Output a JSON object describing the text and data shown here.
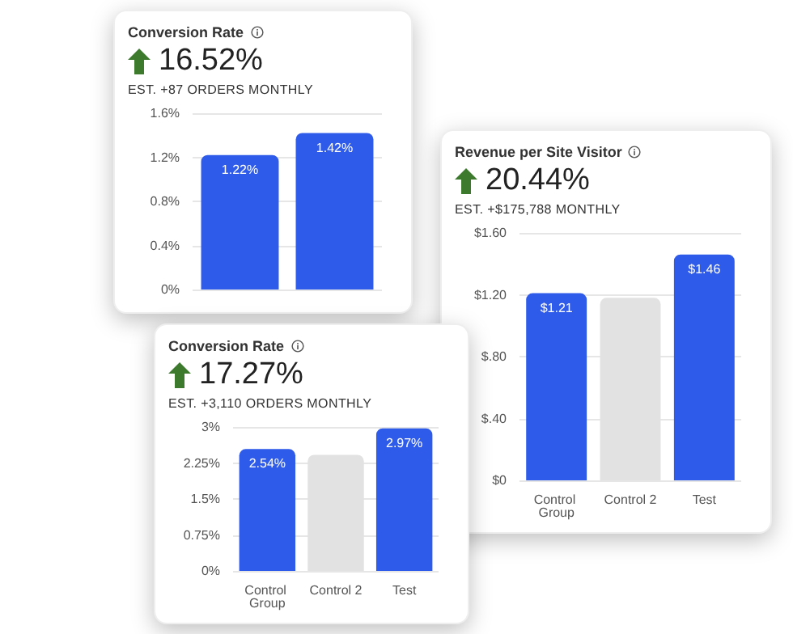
{
  "chart_data": [
    {
      "type": "bar",
      "title": "Conversion Rate",
      "subtitle": "16.52%",
      "annotations": [
        "EST. +87 ORDERS MONTHLY"
      ],
      "categories": [
        null,
        null
      ],
      "values": [
        1.22,
        1.42
      ],
      "colors": [
        "#2f5bea",
        "#2f5bea"
      ],
      "value_labels": [
        "1.22%",
        "1.42%"
      ],
      "ylim": [
        0,
        1.6
      ],
      "yticks": [
        {
          "value": 0,
          "label": "0%"
        },
        {
          "value": 0.4,
          "label": "0.4%"
        },
        {
          "value": 0.8,
          "label": "0.8%"
        },
        {
          "value": 1.2,
          "label": "1.2%"
        },
        {
          "value": 1.6,
          "label": "1.6%"
        }
      ],
      "grid": "y"
    },
    {
      "type": "bar",
      "title": "Revenue per Site Visitor",
      "subtitle": "20.44%",
      "annotations": [
        "EST. +$175,788 MONTHLY"
      ],
      "categories": [
        "Control Group",
        "Control 2",
        "Test"
      ],
      "values": [
        1.21,
        1.18,
        1.46
      ],
      "colors": [
        "#2f5bea",
        "#e2e2e2",
        "#2f5bea"
      ],
      "value_labels": [
        "$1.21",
        null,
        "$1.46"
      ],
      "ylim": [
        0,
        1.6
      ],
      "yticks": [
        {
          "value": 0,
          "label": "$0"
        },
        {
          "value": 0.4,
          "label": "$.40"
        },
        {
          "value": 0.8,
          "label": "$.80"
        },
        {
          "value": 1.2,
          "label": "$1.20"
        },
        {
          "value": 1.6,
          "label": "$1.60"
        }
      ],
      "grid": "y"
    },
    {
      "type": "bar",
      "title": "Conversion Rate",
      "subtitle": "17.27%",
      "annotations": [
        "EST. +3,110 ORDERS MONTHLY"
      ],
      "categories": [
        "Control Group",
        "Control 2",
        "Test"
      ],
      "values": [
        2.54,
        2.42,
        2.97
      ],
      "colors": [
        "#2f5bea",
        "#e2e2e2",
        "#2f5bea"
      ],
      "value_labels": [
        "2.54%",
        null,
        "2.97%"
      ],
      "ylim": [
        0,
        3
      ],
      "yticks": [
        {
          "value": 0,
          "label": "0%"
        },
        {
          "value": 0.75,
          "label": "0.75%"
        },
        {
          "value": 1.5,
          "label": "1.5%"
        },
        {
          "value": 2.25,
          "label": "2.25%"
        },
        {
          "value": 3,
          "label": "3%"
        }
      ],
      "grid": "y"
    }
  ]
}
